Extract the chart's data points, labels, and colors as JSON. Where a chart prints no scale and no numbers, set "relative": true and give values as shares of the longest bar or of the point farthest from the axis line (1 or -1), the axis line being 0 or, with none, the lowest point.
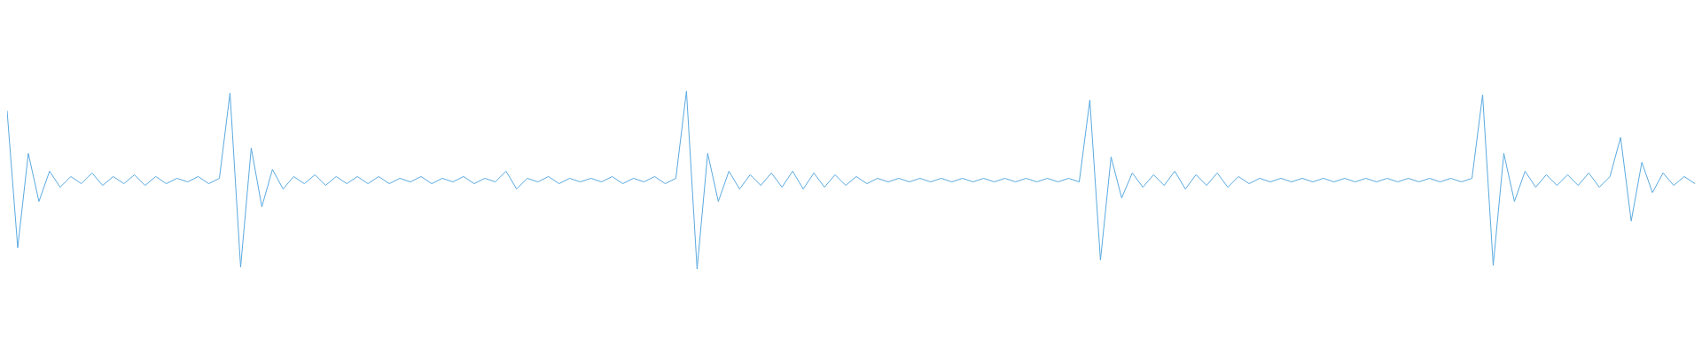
{
  "chart_data": {
    "type": "line",
    "relative": true,
    "categories": [
      null,
      null,
      null,
      null,
      null,
      null,
      null,
      null,
      null,
      null,
      null,
      null,
      null,
      null,
      null,
      null,
      null,
      null,
      null,
      null,
      null,
      null,
      null,
      null,
      null,
      null,
      null,
      null,
      null,
      null,
      null,
      null,
      null,
      null,
      null,
      null,
      null,
      null,
      null,
      null,
      null,
      null,
      null,
      null,
      null,
      null,
      null,
      null,
      null,
      null,
      null,
      null,
      null,
      null,
      null,
      null,
      null,
      null,
      null,
      null,
      null,
      null,
      null,
      null,
      null,
      null,
      null,
      null,
      null,
      null,
      null,
      null,
      null,
      null,
      null,
      null,
      null,
      null,
      null,
      null,
      null,
      null,
      null,
      null,
      null,
      null,
      null,
      null,
      null,
      null,
      null,
      null,
      null,
      null,
      null,
      null,
      null,
      null,
      null,
      null,
      null,
      null,
      null,
      null,
      null,
      null,
      null,
      null,
      null,
      null,
      null,
      null,
      null,
      null,
      null,
      null,
      null,
      null,
      null,
      null,
      null,
      null,
      null,
      null,
      null,
      null,
      null,
      null,
      null,
      null,
      null,
      null,
      null,
      null,
      null,
      null,
      null,
      null,
      null,
      null,
      null,
      null,
      null,
      null,
      null,
      null,
      null,
      null,
      null,
      null,
      null,
      null,
      null,
      null,
      null,
      null,
      null,
      null,
      null,
      null
    ],
    "series": [
      {
        "color": "#5aaae0",
        "values": [
          0.89,
          0.12,
          0.65,
          0.38,
          0.55,
          0.46,
          0.52,
          0.48,
          0.54,
          0.47,
          0.52,
          0.48,
          0.53,
          0.47,
          0.52,
          0.48,
          0.51,
          0.49,
          0.52,
          0.48,
          0.51,
          0.99,
          0.01,
          0.68,
          0.35,
          0.56,
          0.45,
          0.52,
          0.48,
          0.53,
          0.47,
          0.52,
          0.48,
          0.52,
          0.48,
          0.52,
          0.48,
          0.51,
          0.49,
          0.52,
          0.48,
          0.51,
          0.49,
          0.52,
          0.48,
          0.51,
          0.49,
          0.55,
          0.45,
          0.51,
          0.49,
          0.52,
          0.48,
          0.51,
          0.49,
          0.51,
          0.49,
          0.52,
          0.48,
          0.51,
          0.49,
          0.52,
          0.48,
          0.51,
          1,
          0,
          0.65,
          0.38,
          0.55,
          0.45,
          0.53,
          0.47,
          0.54,
          0.46,
          0.55,
          0.45,
          0.54,
          0.46,
          0.53,
          0.47,
          0.52,
          0.48,
          0.51,
          0.49,
          0.51,
          0.49,
          0.51,
          0.49,
          0.51,
          0.49,
          0.51,
          0.49,
          0.51,
          0.49,
          0.51,
          0.49,
          0.51,
          0.49,
          0.51,
          0.49,
          0.51,
          0.49,
          0.95,
          0.05,
          0.63,
          0.4,
          0.54,
          0.46,
          0.53,
          0.47,
          0.55,
          0.45,
          0.53,
          0.47,
          0.54,
          0.46,
          0.52,
          0.48,
          0.51,
          0.49,
          0.51,
          0.49,
          0.51,
          0.49,
          0.51,
          0.49,
          0.51,
          0.49,
          0.51,
          0.49,
          0.51,
          0.49,
          0.51,
          0.49,
          0.51,
          0.49,
          0.51,
          0.49,
          0.51,
          0.98,
          0.02,
          0.65,
          0.38,
          0.55,
          0.46,
          0.53,
          0.47,
          0.53,
          0.47,
          0.54,
          0.46,
          0.52,
          0.74,
          0.27,
          0.6,
          0.43,
          0.54,
          0.47,
          0.52,
          0.48
        ]
      }
    ]
  }
}
